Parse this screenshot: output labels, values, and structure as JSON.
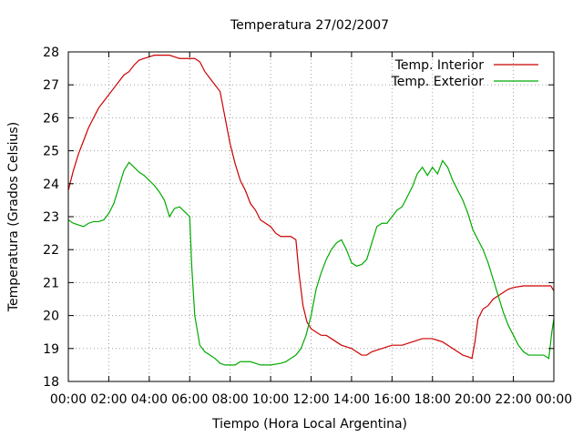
{
  "chart_data": {
    "type": "line",
    "title": "Temperatura 27/02/2007",
    "xlabel": "Tiempo (Hora Local Argentina)",
    "ylabel": "Temperatura (Grados Celsius)",
    "xlim": [
      0,
      24
    ],
    "ylim": [
      18,
      28
    ],
    "x_unit": "hours",
    "x_ticks": [
      0,
      2,
      4,
      6,
      8,
      10,
      12,
      14,
      16,
      18,
      20,
      22,
      24
    ],
    "x_tick_labels": [
      "00:00",
      "02:00",
      "04:00",
      "06:00",
      "08:00",
      "10:00",
      "12:00",
      "14:00",
      "16:00",
      "18:00",
      "20:00",
      "22:00",
      "00:00"
    ],
    "y_ticks": [
      18,
      19,
      20,
      21,
      22,
      23,
      24,
      25,
      26,
      27,
      28
    ],
    "y_tick_labels": [
      "18",
      "19",
      "20",
      "21",
      "22",
      "23",
      "24",
      "25",
      "26",
      "27",
      "28"
    ],
    "grid": true,
    "legend_position": "top-right",
    "series": [
      {
        "name": "Temp. Interior",
        "color": "#cc0000",
        "points": [
          [
            0.0,
            23.8
          ],
          [
            0.25,
            24.4
          ],
          [
            0.5,
            24.9
          ],
          [
            0.75,
            25.3
          ],
          [
            1.0,
            25.7
          ],
          [
            1.25,
            26.0
          ],
          [
            1.5,
            26.3
          ],
          [
            1.75,
            26.5
          ],
          [
            2.0,
            26.7
          ],
          [
            2.25,
            26.9
          ],
          [
            2.5,
            27.1
          ],
          [
            2.75,
            27.3
          ],
          [
            3.0,
            27.4
          ],
          [
            3.25,
            27.6
          ],
          [
            3.5,
            27.75
          ],
          [
            3.75,
            27.8
          ],
          [
            4.0,
            27.85
          ],
          [
            4.25,
            27.9
          ],
          [
            4.5,
            27.9
          ],
          [
            5.0,
            27.9
          ],
          [
            5.25,
            27.85
          ],
          [
            5.5,
            27.8
          ],
          [
            6.0,
            27.8
          ],
          [
            6.25,
            27.8
          ],
          [
            6.5,
            27.7
          ],
          [
            6.75,
            27.4
          ],
          [
            7.0,
            27.2
          ],
          [
            7.25,
            27.0
          ],
          [
            7.5,
            26.8
          ],
          [
            7.75,
            26.0
          ],
          [
            8.0,
            25.2
          ],
          [
            8.25,
            24.6
          ],
          [
            8.5,
            24.1
          ],
          [
            8.75,
            23.8
          ],
          [
            9.0,
            23.4
          ],
          [
            9.25,
            23.2
          ],
          [
            9.5,
            22.9
          ],
          [
            9.75,
            22.8
          ],
          [
            10.0,
            22.7
          ],
          [
            10.25,
            22.5
          ],
          [
            10.5,
            22.4
          ],
          [
            11.0,
            22.4
          ],
          [
            11.25,
            22.3
          ],
          [
            11.4,
            21.3
          ],
          [
            11.6,
            20.3
          ],
          [
            11.8,
            19.8
          ],
          [
            12.0,
            19.6
          ],
          [
            12.25,
            19.5
          ],
          [
            12.5,
            19.4
          ],
          [
            12.75,
            19.4
          ],
          [
            13.0,
            19.3
          ],
          [
            13.25,
            19.2
          ],
          [
            13.5,
            19.1
          ],
          [
            14.0,
            19.0
          ],
          [
            14.25,
            18.9
          ],
          [
            14.5,
            18.8
          ],
          [
            14.75,
            18.8
          ],
          [
            15.0,
            18.9
          ],
          [
            15.25,
            18.95
          ],
          [
            15.5,
            19.0
          ],
          [
            16.0,
            19.1
          ],
          [
            16.5,
            19.1
          ],
          [
            17.0,
            19.2
          ],
          [
            17.5,
            19.3
          ],
          [
            18.0,
            19.3
          ],
          [
            18.25,
            19.25
          ],
          [
            18.5,
            19.2
          ],
          [
            18.75,
            19.1
          ],
          [
            19.0,
            19.0
          ],
          [
            19.25,
            18.9
          ],
          [
            19.5,
            18.8
          ],
          [
            19.75,
            18.75
          ],
          [
            19.95,
            18.7
          ],
          [
            20.1,
            19.2
          ],
          [
            20.25,
            19.9
          ],
          [
            20.5,
            20.2
          ],
          [
            20.75,
            20.3
          ],
          [
            21.0,
            20.5
          ],
          [
            21.25,
            20.6
          ],
          [
            21.5,
            20.7
          ],
          [
            21.75,
            20.8
          ],
          [
            22.0,
            20.85
          ],
          [
            22.5,
            20.9
          ],
          [
            23.0,
            20.9
          ],
          [
            23.5,
            20.9
          ],
          [
            23.85,
            20.9
          ],
          [
            24.0,
            20.75
          ]
        ]
      },
      {
        "name": "Temp. Exterior",
        "color": "#00aa00",
        "points": [
          [
            0.0,
            22.9
          ],
          [
            0.25,
            22.8
          ],
          [
            0.5,
            22.75
          ],
          [
            0.75,
            22.7
          ],
          [
            1.0,
            22.8
          ],
          [
            1.25,
            22.85
          ],
          [
            1.5,
            22.85
          ],
          [
            1.75,
            22.9
          ],
          [
            2.0,
            23.1
          ],
          [
            2.25,
            23.4
          ],
          [
            2.5,
            23.9
          ],
          [
            2.75,
            24.4
          ],
          [
            3.0,
            24.65
          ],
          [
            3.25,
            24.5
          ],
          [
            3.5,
            24.35
          ],
          [
            3.75,
            24.25
          ],
          [
            4.0,
            24.1
          ],
          [
            4.25,
            23.95
          ],
          [
            4.5,
            23.75
          ],
          [
            4.75,
            23.5
          ],
          [
            5.0,
            23.0
          ],
          [
            5.25,
            23.25
          ],
          [
            5.5,
            23.3
          ],
          [
            5.75,
            23.15
          ],
          [
            6.0,
            23.0
          ],
          [
            6.1,
            21.5
          ],
          [
            6.25,
            20.0
          ],
          [
            6.5,
            19.1
          ],
          [
            6.75,
            18.9
          ],
          [
            7.0,
            18.8
          ],
          [
            7.25,
            18.7
          ],
          [
            7.5,
            18.55
          ],
          [
            7.75,
            18.5
          ],
          [
            8.0,
            18.5
          ],
          [
            8.25,
            18.5
          ],
          [
            8.5,
            18.6
          ],
          [
            8.75,
            18.6
          ],
          [
            9.0,
            18.6
          ],
          [
            9.25,
            18.55
          ],
          [
            9.5,
            18.5
          ],
          [
            10.0,
            18.5
          ],
          [
            10.5,
            18.55
          ],
          [
            10.75,
            18.6
          ],
          [
            11.0,
            18.7
          ],
          [
            11.25,
            18.8
          ],
          [
            11.5,
            19.0
          ],
          [
            11.75,
            19.4
          ],
          [
            12.0,
            20.0
          ],
          [
            12.25,
            20.8
          ],
          [
            12.5,
            21.3
          ],
          [
            12.75,
            21.7
          ],
          [
            13.0,
            22.0
          ],
          [
            13.25,
            22.2
          ],
          [
            13.5,
            22.3
          ],
          [
            13.75,
            22.0
          ],
          [
            14.0,
            21.6
          ],
          [
            14.25,
            21.5
          ],
          [
            14.5,
            21.55
          ],
          [
            14.75,
            21.7
          ],
          [
            15.0,
            22.2
          ],
          [
            15.25,
            22.7
          ],
          [
            15.5,
            22.8
          ],
          [
            15.75,
            22.8
          ],
          [
            16.0,
            23.0
          ],
          [
            16.25,
            23.2
          ],
          [
            16.5,
            23.3
          ],
          [
            16.75,
            23.6
          ],
          [
            17.0,
            23.9
          ],
          [
            17.25,
            24.3
          ],
          [
            17.5,
            24.5
          ],
          [
            17.75,
            24.25
          ],
          [
            18.0,
            24.5
          ],
          [
            18.25,
            24.3
          ],
          [
            18.5,
            24.7
          ],
          [
            18.75,
            24.5
          ],
          [
            19.0,
            24.1
          ],
          [
            19.25,
            23.8
          ],
          [
            19.5,
            23.5
          ],
          [
            19.75,
            23.1
          ],
          [
            20.0,
            22.6
          ],
          [
            20.25,
            22.3
          ],
          [
            20.5,
            22.0
          ],
          [
            20.75,
            21.6
          ],
          [
            21.0,
            21.1
          ],
          [
            21.25,
            20.6
          ],
          [
            21.5,
            20.1
          ],
          [
            21.75,
            19.7
          ],
          [
            22.0,
            19.4
          ],
          [
            22.25,
            19.1
          ],
          [
            22.5,
            18.9
          ],
          [
            22.75,
            18.8
          ],
          [
            23.0,
            18.8
          ],
          [
            23.5,
            18.8
          ],
          [
            23.75,
            18.7
          ],
          [
            23.9,
            19.5
          ],
          [
            24.0,
            19.9
          ]
        ]
      }
    ]
  }
}
